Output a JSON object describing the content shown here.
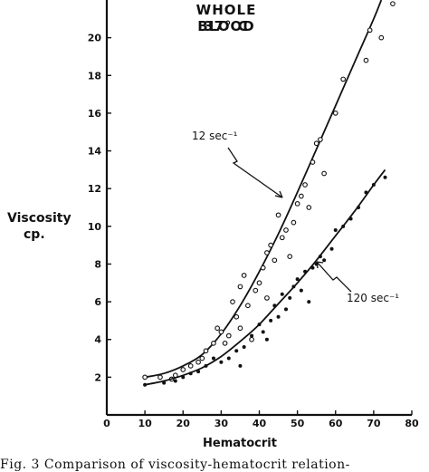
{
  "chart_data": {
    "type": "scatter",
    "title": [
      "WHOLE BLOOD",
      "37° C"
    ],
    "xlabel": "Hematocrit",
    "ylabel": [
      "Viscosity",
      "cp."
    ],
    "xlim": [
      0,
      80
    ],
    "ylim": [
      0,
      22
    ],
    "x_ticks": [
      0,
      10,
      20,
      30,
      40,
      50,
      60,
      70,
      80
    ],
    "y_ticks": [
      2,
      4,
      6,
      8,
      10,
      12,
      14,
      16,
      18,
      20
    ],
    "grid": false,
    "series": [
      {
        "name": "12 sec⁻¹",
        "marker": "circle",
        "points": [
          [
            10,
            2.0
          ],
          [
            14,
            2.0
          ],
          [
            17,
            1.9
          ],
          [
            18,
            2.1
          ],
          [
            20,
            2.4
          ],
          [
            22,
            2.6
          ],
          [
            24,
            2.8
          ],
          [
            25,
            3.0
          ],
          [
            26,
            3.4
          ],
          [
            28,
            3.8
          ],
          [
            29,
            4.6
          ],
          [
            30,
            4.4
          ],
          [
            31,
            3.8
          ],
          [
            32,
            4.2
          ],
          [
            33,
            6.0
          ],
          [
            34,
            5.2
          ],
          [
            35,
            6.8
          ],
          [
            35,
            4.6
          ],
          [
            36,
            7.4
          ],
          [
            37,
            5.8
          ],
          [
            38,
            4.0
          ],
          [
            39,
            6.6
          ],
          [
            40,
            7.0
          ],
          [
            41,
            7.8
          ],
          [
            42,
            8.6
          ],
          [
            42,
            6.2
          ],
          [
            43,
            9.0
          ],
          [
            44,
            8.2
          ],
          [
            45,
            10.6
          ],
          [
            46,
            9.4
          ],
          [
            47,
            9.8
          ],
          [
            48,
            8.4
          ],
          [
            49,
            10.2
          ],
          [
            50,
            11.2
          ],
          [
            51,
            11.6
          ],
          [
            52,
            12.2
          ],
          [
            53,
            11.0
          ],
          [
            54,
            13.4
          ],
          [
            55,
            14.4
          ],
          [
            56,
            14.6
          ],
          [
            57,
            12.8
          ],
          [
            60,
            16.0
          ],
          [
            62,
            17.8
          ],
          [
            68,
            18.8
          ],
          [
            69,
            20.4
          ],
          [
            72,
            20.0
          ],
          [
            75,
            21.8
          ]
        ],
        "fit_curve": [
          [
            10,
            2.0
          ],
          [
            15,
            2.2
          ],
          [
            20,
            2.6
          ],
          [
            25,
            3.2
          ],
          [
            30,
            4.3
          ],
          [
            35,
            5.8
          ],
          [
            40,
            7.6
          ],
          [
            45,
            9.6
          ],
          [
            50,
            11.8
          ],
          [
            55,
            14.1
          ],
          [
            60,
            16.4
          ],
          [
            65,
            18.7
          ],
          [
            70,
            21.0
          ],
          [
            72,
            22.0
          ]
        ],
        "curve_label": "12  sec⁻¹"
      },
      {
        "name": "120 sec⁻¹",
        "marker": "dot",
        "points": [
          [
            10,
            1.6
          ],
          [
            15,
            1.7
          ],
          [
            18,
            1.8
          ],
          [
            20,
            2.0
          ],
          [
            22,
            2.2
          ],
          [
            24,
            2.3
          ],
          [
            26,
            2.6
          ],
          [
            28,
            3.0
          ],
          [
            30,
            2.8
          ],
          [
            32,
            3.0
          ],
          [
            34,
            3.4
          ],
          [
            35,
            2.6
          ],
          [
            36,
            3.6
          ],
          [
            38,
            4.2
          ],
          [
            40,
            4.8
          ],
          [
            41,
            4.4
          ],
          [
            42,
            4.0
          ],
          [
            43,
            5.0
          ],
          [
            44,
            5.8
          ],
          [
            45,
            5.2
          ],
          [
            46,
            6.4
          ],
          [
            47,
            5.6
          ],
          [
            48,
            6.2
          ],
          [
            49,
            6.8
          ],
          [
            50,
            7.2
          ],
          [
            51,
            6.6
          ],
          [
            52,
            7.6
          ],
          [
            53,
            6.0
          ],
          [
            54,
            7.8
          ],
          [
            55,
            8.0
          ],
          [
            56,
            8.4
          ],
          [
            57,
            8.2
          ],
          [
            59,
            8.8
          ],
          [
            60,
            9.8
          ],
          [
            62,
            10.0
          ],
          [
            64,
            10.4
          ],
          [
            66,
            11.0
          ],
          [
            68,
            11.8
          ],
          [
            70,
            12.2
          ],
          [
            73,
            12.6
          ]
        ],
        "fit_curve": [
          [
            10,
            1.6
          ],
          [
            15,
            1.8
          ],
          [
            20,
            2.1
          ],
          [
            25,
            2.5
          ],
          [
            30,
            3.1
          ],
          [
            35,
            3.9
          ],
          [
            40,
            4.8
          ],
          [
            45,
            5.9
          ],
          [
            50,
            7.0
          ],
          [
            55,
            8.2
          ],
          [
            60,
            9.5
          ],
          [
            65,
            10.8
          ],
          [
            70,
            12.2
          ],
          [
            73,
            13.0
          ]
        ],
        "curve_label": "120  sec⁻¹"
      }
    ]
  },
  "caption": "Fig. 3   Comparison of viscosity-hematocrit relation-"
}
